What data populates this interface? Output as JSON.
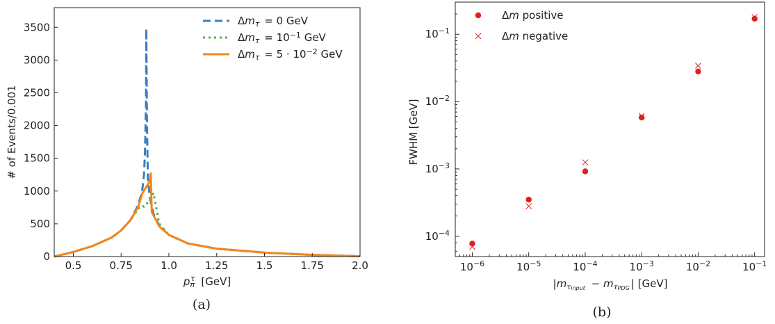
{
  "chart_data": [
    {
      "type": "line",
      "caption": "(a)",
      "xlabel": "p_π^τ [GeV]",
      "ylabel": "# of Events/0.001",
      "xlim": [
        0.4,
        2.0
      ],
      "ylim": [
        0,
        3800
      ],
      "xticks": [
        0.5,
        0.75,
        1.0,
        1.25,
        1.5,
        1.75,
        2.0
      ],
      "xtick_labels": [
        "0.5",
        "0.75",
        "1.0",
        "1.25",
        "1.5",
        "1.75",
        "2.0"
      ],
      "yticks": [
        0,
        500,
        1000,
        1500,
        2000,
        2500,
        3000,
        3500
      ],
      "ytick_labels": [
        "0",
        "500",
        "1000",
        "1500",
        "2000",
        "2500",
        "3000",
        "3500"
      ],
      "legend_position": "top-right",
      "series": [
        {
          "name": "Δm_τ = 0 GeV",
          "color": "#3a7ebf",
          "style": "dashed",
          "x": [
            0.4,
            0.5,
            0.6,
            0.7,
            0.75,
            0.8,
            0.84,
            0.86,
            0.87,
            0.875,
            0.88,
            0.882,
            0.885,
            0.89,
            0.9,
            0.92,
            0.95,
            1.0,
            1.1,
            1.25,
            1.5,
            1.75,
            2.0
          ],
          "y": [
            0,
            70,
            160,
            290,
            400,
            560,
            790,
            1000,
            1250,
            1600,
            2300,
            3480,
            2100,
            1200,
            900,
            650,
            470,
            330,
            200,
            120,
            60,
            25,
            5
          ]
        },
        {
          "name": "Δm_τ = 10^-1 GeV",
          "color": "#4fb34a",
          "style": "dotted",
          "x": [
            0.4,
            0.5,
            0.6,
            0.7,
            0.75,
            0.8,
            0.84,
            0.86,
            0.87,
            0.9,
            0.92,
            0.93,
            0.95,
            1.0,
            1.1,
            1.25,
            1.5,
            1.75,
            2.0
          ],
          "y": [
            0,
            70,
            160,
            290,
            400,
            560,
            730,
            780,
            760,
            860,
            970,
            800,
            500,
            330,
            200,
            120,
            60,
            25,
            5
          ]
        },
        {
          "name": "Δm_τ = 5·10^-2 GeV",
          "color": "#f58518",
          "style": "solid",
          "x": [
            0.4,
            0.5,
            0.6,
            0.7,
            0.75,
            0.8,
            0.84,
            0.86,
            0.9,
            0.905,
            0.91,
            0.95,
            1.0,
            1.1,
            1.25,
            1.5,
            1.75,
            2.0
          ],
          "y": [
            0,
            70,
            160,
            290,
            400,
            560,
            760,
            960,
            1150,
            1270,
            680,
            460,
            330,
            200,
            120,
            60,
            25,
            5
          ]
        }
      ]
    },
    {
      "type": "scatter",
      "caption": "(b)",
      "xlabel": "|m_τinput − m_τPDG| [GeV]",
      "ylabel": "FWHM [GeV]",
      "xscale": "log",
      "yscale": "log",
      "xlim": [
        5e-07,
        0.15
      ],
      "ylim": [
        5e-05,
        0.3
      ],
      "xticks": [
        1e-06,
        1e-05,
        0.0001,
        0.001,
        0.01,
        0.1
      ],
      "xtick_labels": [
        {
          "b": "10",
          "e": "−6"
        },
        {
          "b": "10",
          "e": "−5"
        },
        {
          "b": "10",
          "e": "−4"
        },
        {
          "b": "10",
          "e": "−3"
        },
        {
          "b": "10",
          "e": "−2"
        },
        {
          "b": "10",
          "e": "−1"
        }
      ],
      "yticks": [
        0.0001,
        0.001,
        0.01,
        0.1
      ],
      "ytick_labels": [
        {
          "b": "10",
          "e": "−4"
        },
        {
          "b": "10",
          "e": "−3"
        },
        {
          "b": "10",
          "e": "−2"
        },
        {
          "b": "10",
          "e": "−1"
        }
      ],
      "legend_position": "top-left",
      "series": [
        {
          "name": "Δm positive",
          "color": "#e02020",
          "marker": "circle",
          "x": [
            1e-06,
            1e-05,
            0.0001,
            0.001,
            0.01,
            0.1
          ],
          "y": [
            7.8e-05,
            0.00035,
            0.00092,
            0.0058,
            0.028,
            0.17
          ]
        },
        {
          "name": "Δm negative",
          "color": "#e02020",
          "marker": "x",
          "x": [
            1e-06,
            1e-05,
            0.0001,
            0.001,
            0.01,
            0.1
          ],
          "y": [
            7e-05,
            0.00028,
            0.00125,
            0.0061,
            0.034,
            0.18
          ]
        }
      ]
    }
  ]
}
